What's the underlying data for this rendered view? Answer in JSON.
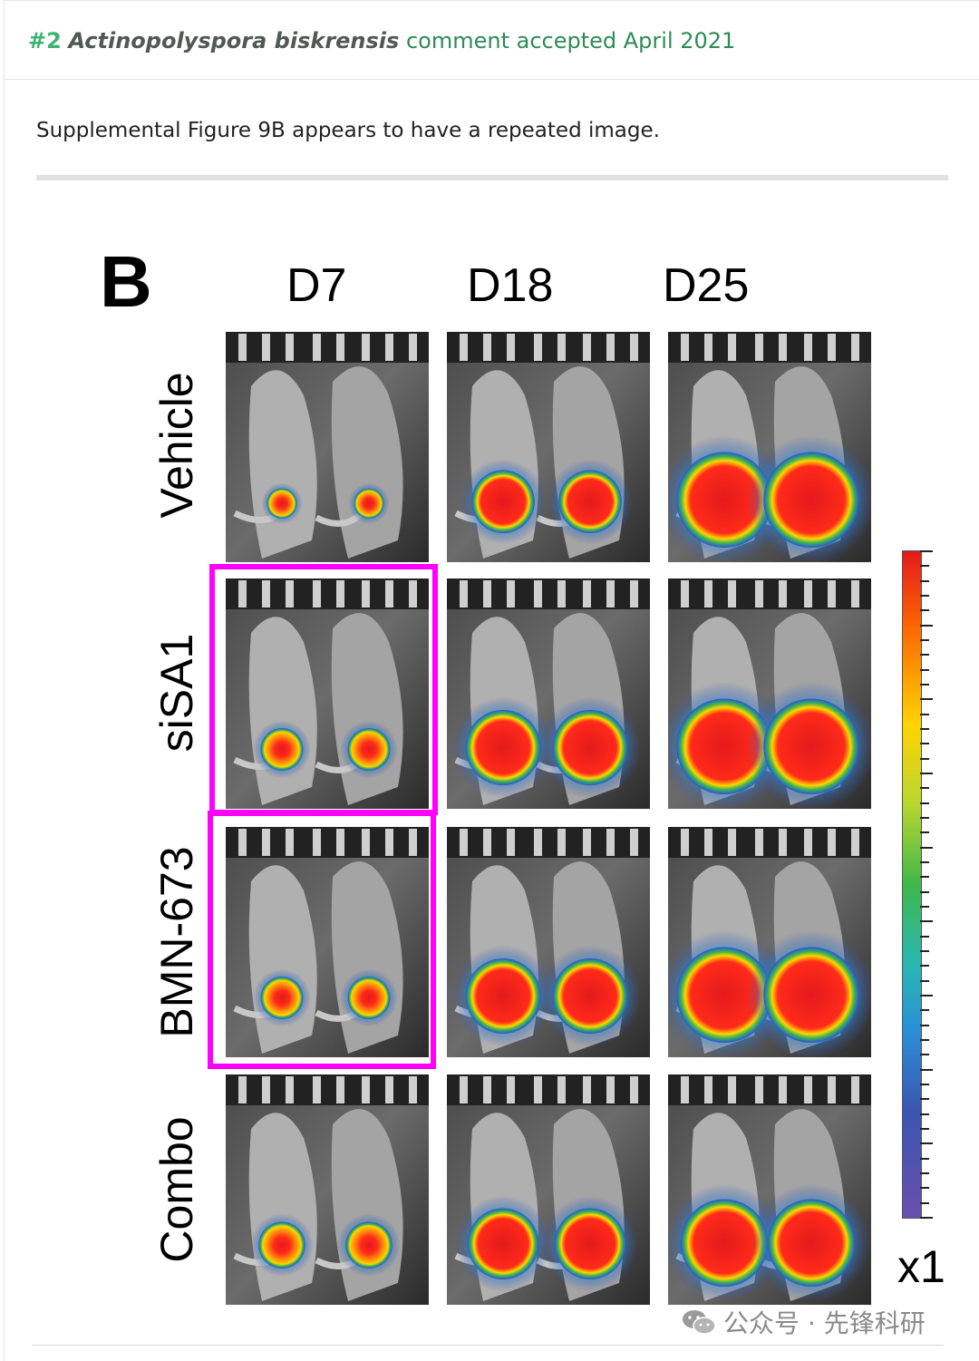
{
  "header": {
    "number": "#2",
    "species": "Actinopolyspora biskrensis",
    "status": "comment accepted April 2021"
  },
  "comment": {
    "text": "Supplemental Figure 9B appears to have a repeated image."
  },
  "figure": {
    "panel_letter": "B",
    "columns": [
      "D7",
      "D18",
      "D25"
    ],
    "rows": [
      "Vehicle",
      "siSA1",
      "BMN-673",
      "Combo"
    ],
    "highlighted_panels": [
      "siSA1-D7",
      "BMN-673-D7"
    ],
    "highlight_color": "#ff00ff",
    "colorbar_label": "x1",
    "signal_levels": [
      [
        0.15,
        0.55,
        0.95
      ],
      [
        0.3,
        0.7,
        0.95
      ],
      [
        0.3,
        0.7,
        0.95
      ],
      [
        0.35,
        0.65,
        0.85
      ]
    ]
  },
  "watermark": {
    "text": "公众号 · 先锋科研"
  }
}
